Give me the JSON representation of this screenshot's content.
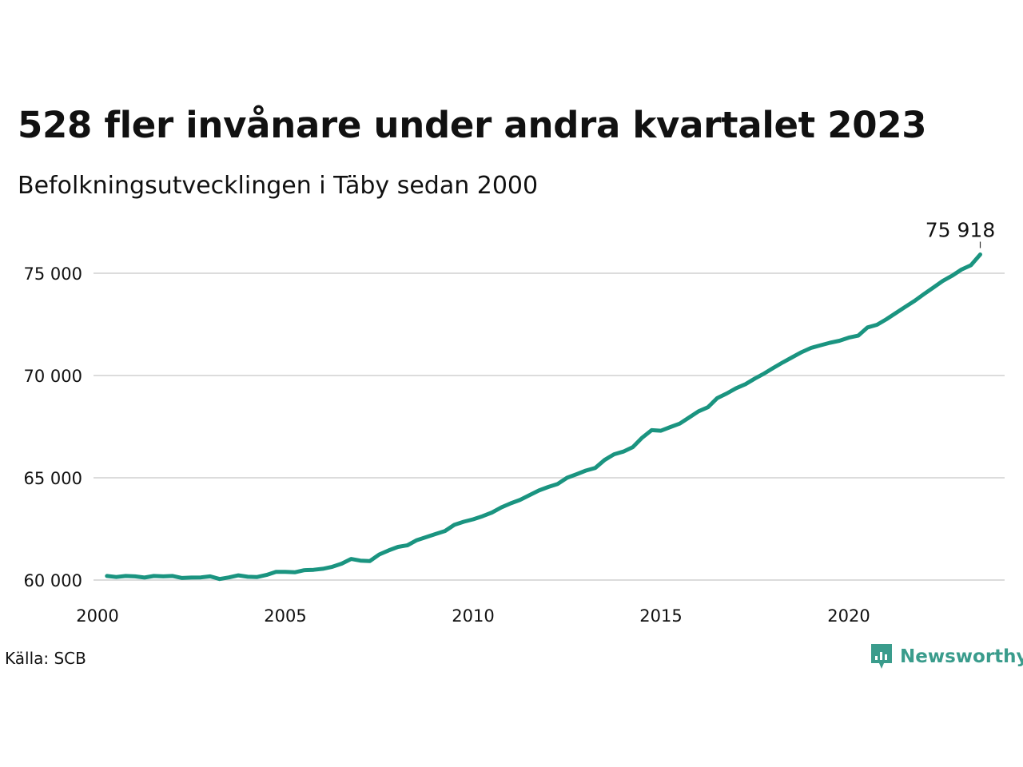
{
  "header": {
    "title": "528 fler invånare under andra kvartalet 2023",
    "subtitle": "Befolkningsutvecklingen i Täby sedan 2000"
  },
  "footer": {
    "source": "Källa: SCB",
    "brand": "Newsworthy",
    "brand_color": "#3a9c8c"
  },
  "chart_data": {
    "type": "line",
    "title": "528 fler invånare under andra kvartalet 2023",
    "subtitle": "Befolkningsutvecklingen i Täby sedan 2000",
    "xlabel": "",
    "ylabel": "",
    "xlim": [
      2000,
      2024.5
    ],
    "ylim": [
      59500,
      76500
    ],
    "grid": true,
    "line_color": "#1a9480",
    "x_ticks": [
      {
        "value": 2000,
        "label": "2000"
      },
      {
        "value": 2005,
        "label": "2005"
      },
      {
        "value": 2010,
        "label": "2010"
      },
      {
        "value": 2015,
        "label": "2015"
      },
      {
        "value": 2020,
        "label": "2020"
      }
    ],
    "y_ticks": [
      {
        "value": 60000,
        "label": "60 000"
      },
      {
        "value": 65000,
        "label": "65 000"
      },
      {
        "value": 70000,
        "label": "70 000"
      },
      {
        "value": 75000,
        "label": "75 000"
      }
    ],
    "end_label": "75 918",
    "series": [
      {
        "x": [
          2000.25,
          2000.5,
          2000.75,
          2001.0,
          2001.25,
          2001.5,
          2001.75,
          2002.0,
          2002.25,
          2002.5,
          2002.75,
          2003.0,
          2003.25,
          2003.5,
          2003.75,
          2004.0,
          2004.25,
          2004.5,
          2004.75,
          2005.0,
          2005.25,
          2005.5,
          2005.75,
          2006.0,
          2006.25,
          2006.5,
          2006.75,
          2007.0,
          2007.25,
          2007.5,
          2007.75,
          2008.0,
          2008.25,
          2008.5,
          2008.75,
          2009.0,
          2009.25,
          2009.5,
          2009.75,
          2010.0,
          2010.25,
          2010.5,
          2010.75,
          2011.0,
          2011.25,
          2011.5,
          2011.75,
          2012.0,
          2012.25,
          2012.5,
          2012.75,
          2013.0,
          2013.25,
          2013.5,
          2013.75,
          2014.0,
          2014.25,
          2014.5,
          2014.75,
          2015.0,
          2015.25,
          2015.5,
          2015.75,
          2016.0,
          2016.25,
          2016.5,
          2016.75,
          2017.0,
          2017.25,
          2017.5,
          2017.75,
          2018.0,
          2018.25,
          2018.5,
          2018.75,
          2019.0,
          2019.25,
          2019.5,
          2019.75,
          2020.0,
          2020.25,
          2020.5,
          2020.75,
          2021.0,
          2021.25,
          2021.5,
          2021.75,
          2022.0,
          2022.25,
          2022.5,
          2022.75,
          2023.0,
          2023.25,
          2023.5
        ],
        "values": [
          60200,
          60150,
          60200,
          60180,
          60120,
          60200,
          60180,
          60200,
          60100,
          60120,
          60130,
          60180,
          60050,
          60130,
          60230,
          60160,
          60150,
          60250,
          60400,
          60400,
          60380,
          60480,
          60500,
          60550,
          60650,
          60800,
          61030,
          60950,
          60930,
          61250,
          61450,
          61620,
          61700,
          61950,
          62100,
          62250,
          62400,
          62700,
          62850,
          62970,
          63120,
          63300,
          63550,
          63750,
          63920,
          64150,
          64380,
          64550,
          64700,
          65000,
          65170,
          65350,
          65480,
          65870,
          66150,
          66280,
          66500,
          66960,
          67330,
          67300,
          67480,
          67650,
          67950,
          68250,
          68450,
          68900,
          69120,
          69380,
          69580,
          69850,
          70100,
          70380,
          70650,
          70900,
          71150,
          71350,
          71480,
          71600,
          71700,
          71850,
          71950,
          72350,
          72480,
          72750,
          73050,
          73350,
          73650,
          73980,
          74300,
          74620,
          74880,
          75180,
          75390,
          75918
        ]
      }
    ]
  }
}
